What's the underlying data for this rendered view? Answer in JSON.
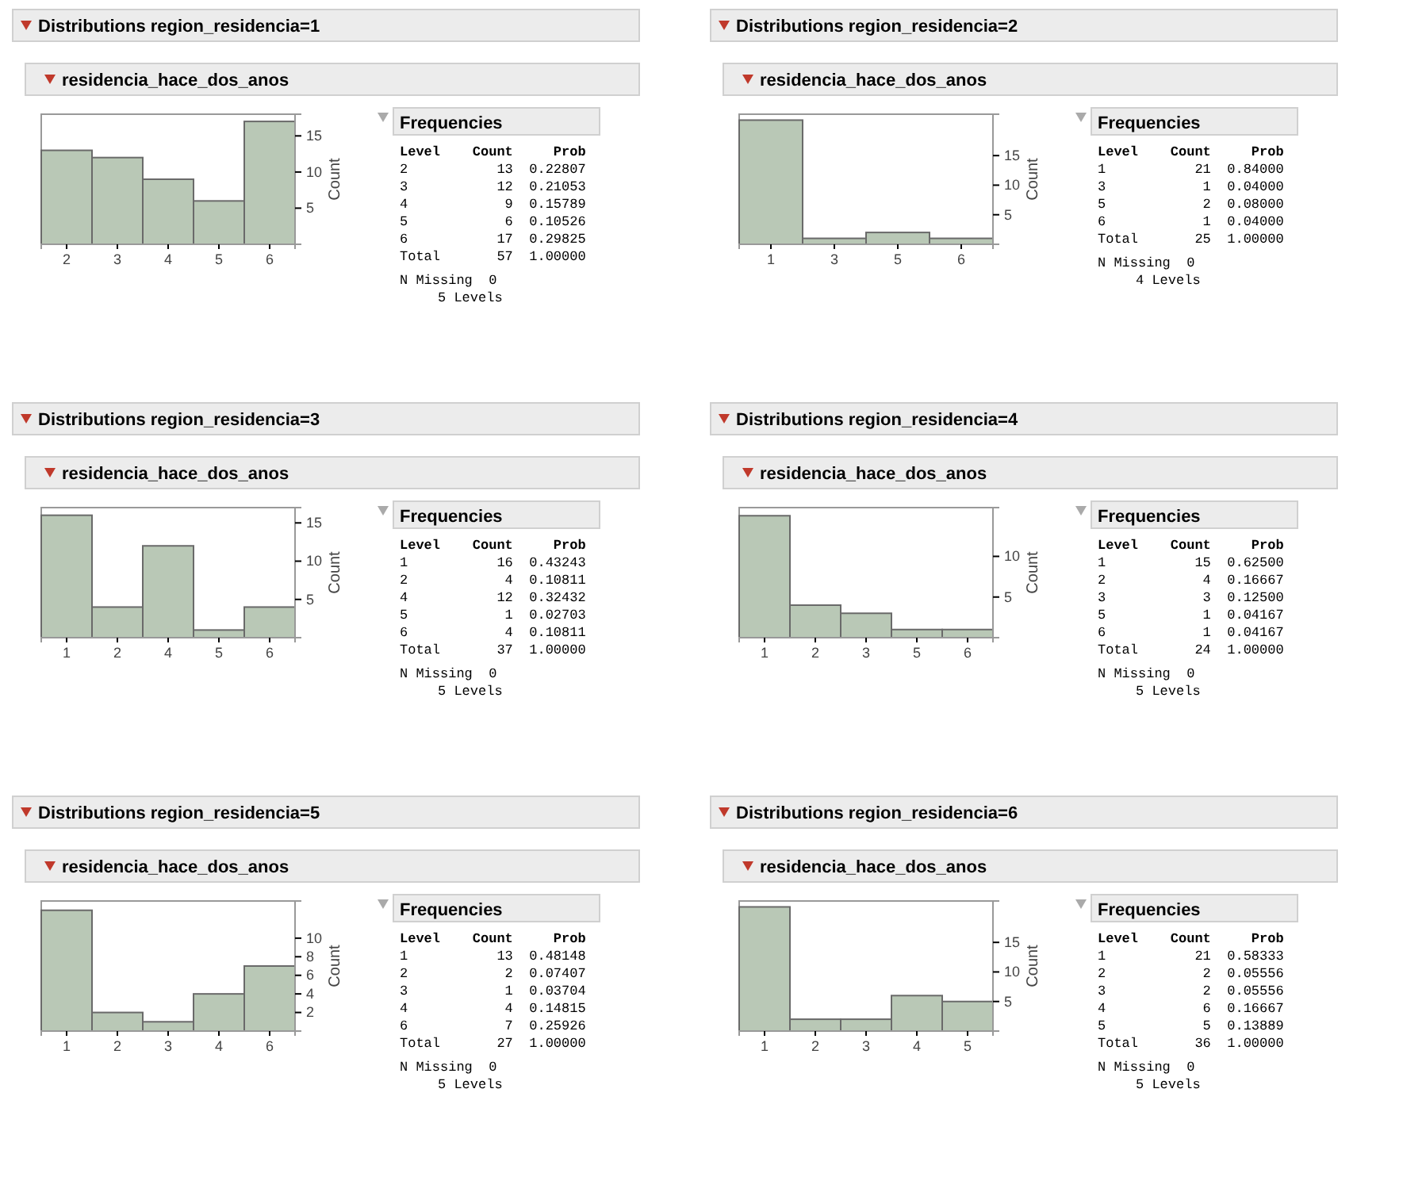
{
  "chart_data": [
    {
      "type": "bar",
      "title": "Distributions region_residencia=1",
      "subtitle": "residencia_hace_dos_anos",
      "ylabel": "Count",
      "categories": [
        "2",
        "3",
        "4",
        "5",
        "6"
      ],
      "values": [
        13,
        12,
        9,
        6,
        17
      ],
      "color": "#b9c8b6",
      "ylim": [
        0,
        18
      ],
      "yticks": [
        5,
        10,
        15
      ]
    },
    {
      "type": "other",
      "title": "Frequencies",
      "annotations": [
        "Level  Count  Prob",
        "2  13  0.22807",
        "3  12  0.21053",
        "4  9  0.15789",
        "5  6  0.10526",
        "6  17  0.29825",
        "Total  57  1.00000",
        "N Missing  0",
        "5 Levels"
      ]
    },
    {
      "type": "bar",
      "title": "Distributions region_residencia=2",
      "subtitle": "residencia_hace_dos_anos",
      "ylabel": "Count",
      "categories": [
        "1",
        "3",
        "5",
        "6"
      ],
      "values": [
        21,
        1,
        2,
        1
      ],
      "color": "#b9c8b6",
      "ylim": [
        0,
        22
      ],
      "yticks": [
        5,
        10,
        15
      ]
    },
    {
      "type": "other",
      "title": "Frequencies",
      "annotations": [
        "Level  Count  Prob",
        "1  21  0.84000",
        "3  1  0.04000",
        "5  2  0.08000",
        "6  1  0.04000",
        "Total  25  1.00000",
        "N Missing  0",
        "4 Levels"
      ]
    },
    {
      "type": "bar",
      "title": "Distributions region_residencia=3",
      "subtitle": "residencia_hace_dos_anos",
      "ylabel": "Count",
      "categories": [
        "1",
        "2",
        "4",
        "5",
        "6"
      ],
      "values": [
        16,
        4,
        12,
        1,
        4
      ],
      "color": "#b9c8b6",
      "ylim": [
        0,
        17
      ],
      "yticks": [
        5,
        10,
        15
      ]
    },
    {
      "type": "other",
      "title": "Frequencies",
      "annotations": [
        "Level  Count  Prob",
        "1  16  0.43243",
        "2  4  0.10811",
        "4  12  0.32432",
        "5  1  0.02703",
        "6  4  0.10811",
        "Total  37  1.00000",
        "N Missing  0",
        "5 Levels"
      ]
    },
    {
      "type": "bar",
      "title": "Distributions region_residencia=4",
      "subtitle": "residencia_hace_dos_anos",
      "ylabel": "Count",
      "categories": [
        "1",
        "2",
        "3",
        "5",
        "6"
      ],
      "values": [
        15,
        4,
        3,
        1,
        1
      ],
      "color": "#b9c8b6",
      "ylim": [
        0,
        16
      ],
      "yticks": [
        5,
        10
      ]
    },
    {
      "type": "other",
      "title": "Frequencies",
      "annotations": [
        "Level  Count  Prob",
        "1  15  0.62500",
        "2  4  0.16667",
        "3  3  0.12500",
        "5  1  0.04167",
        "6  1  0.04167",
        "Total  24  1.00000",
        "N Missing  0",
        "5 Levels"
      ]
    },
    {
      "type": "bar",
      "title": "Distributions region_residencia=5",
      "subtitle": "residencia_hace_dos_anos",
      "ylabel": "Count",
      "categories": [
        "1",
        "2",
        "3",
        "4",
        "6"
      ],
      "values": [
        13,
        2,
        1,
        4,
        7
      ],
      "color": "#b9c8b6",
      "ylim": [
        0,
        14
      ],
      "yticks": [
        2,
        4,
        6,
        8,
        10
      ]
    },
    {
      "type": "other",
      "title": "Frequencies",
      "annotations": [
        "Level  Count  Prob",
        "1  13  0.48148",
        "2  2  0.07407",
        "3  1  0.03704",
        "4  4  0.14815",
        "6  7  0.25926",
        "Total  27  1.00000",
        "N Missing  0",
        "5 Levels"
      ]
    },
    {
      "type": "bar",
      "title": "Distributions region_residencia=6",
      "subtitle": "residencia_hace_dos_anos",
      "ylabel": "Count",
      "categories": [
        "1",
        "2",
        "3",
        "4",
        "5"
      ],
      "values": [
        21,
        2,
        2,
        6,
        5
      ],
      "color": "#b9c8b6",
      "ylim": [
        0,
        22
      ],
      "yticks": [
        5,
        10,
        15
      ]
    },
    {
      "type": "other",
      "title": "Frequencies",
      "annotations": [
        "Level  Count  Prob",
        "1  21  0.58333",
        "2  2  0.05556",
        "3  2  0.05556",
        "4  6  0.16667",
        "5  5  0.13889",
        "Total  36  1.00000",
        "N Missing  0",
        "5 Levels"
      ]
    }
  ]
}
